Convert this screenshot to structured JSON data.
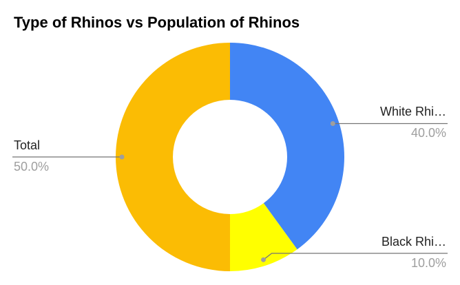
{
  "chart_data": {
    "type": "donut",
    "title": "Type of Rhinos vs Population of Rhinos",
    "categories": [
      "White Rhi…",
      "Black Rhi…",
      "Total"
    ],
    "values": [
      40,
      10,
      50
    ],
    "value_labels": [
      "40.0%",
      "10.0%",
      "50.0%"
    ],
    "colors": [
      "#4285f4",
      "#ffff00",
      "#fbbc04"
    ]
  }
}
